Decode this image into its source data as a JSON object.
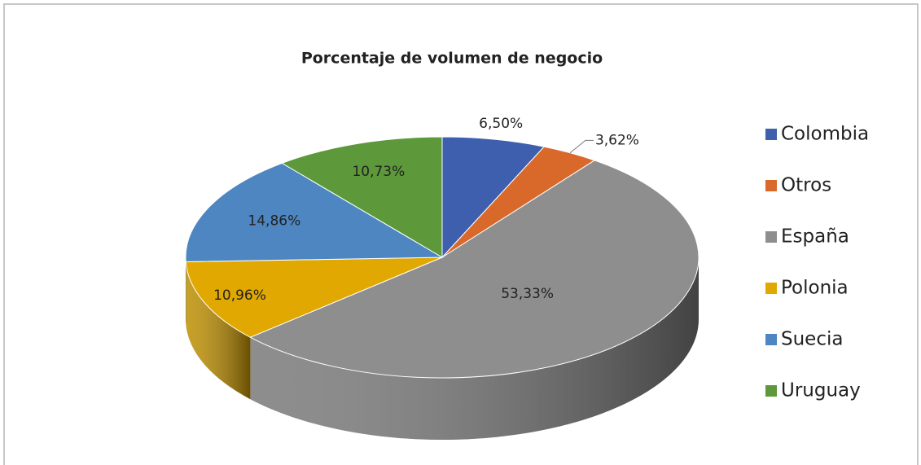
{
  "chart_data": {
    "type": "pie",
    "title": "Porcentaje de volumen de negocio",
    "categories": [
      "Colombia",
      "Otros",
      "España",
      "Polonia",
      "Suecia",
      "Uruguay"
    ],
    "values": [
      6.5,
      3.62,
      53.33,
      10.96,
      14.86,
      10.73
    ],
    "value_labels": [
      "6,50%",
      "3,62%",
      "53,33%",
      "10,96%",
      "14,86%",
      "10,73%"
    ],
    "colors": [
      "#3d5fad",
      "#d9692a",
      "#8e8e8e",
      "#e0a800",
      "#4d86c1",
      "#5d993b"
    ],
    "legend": "right"
  }
}
